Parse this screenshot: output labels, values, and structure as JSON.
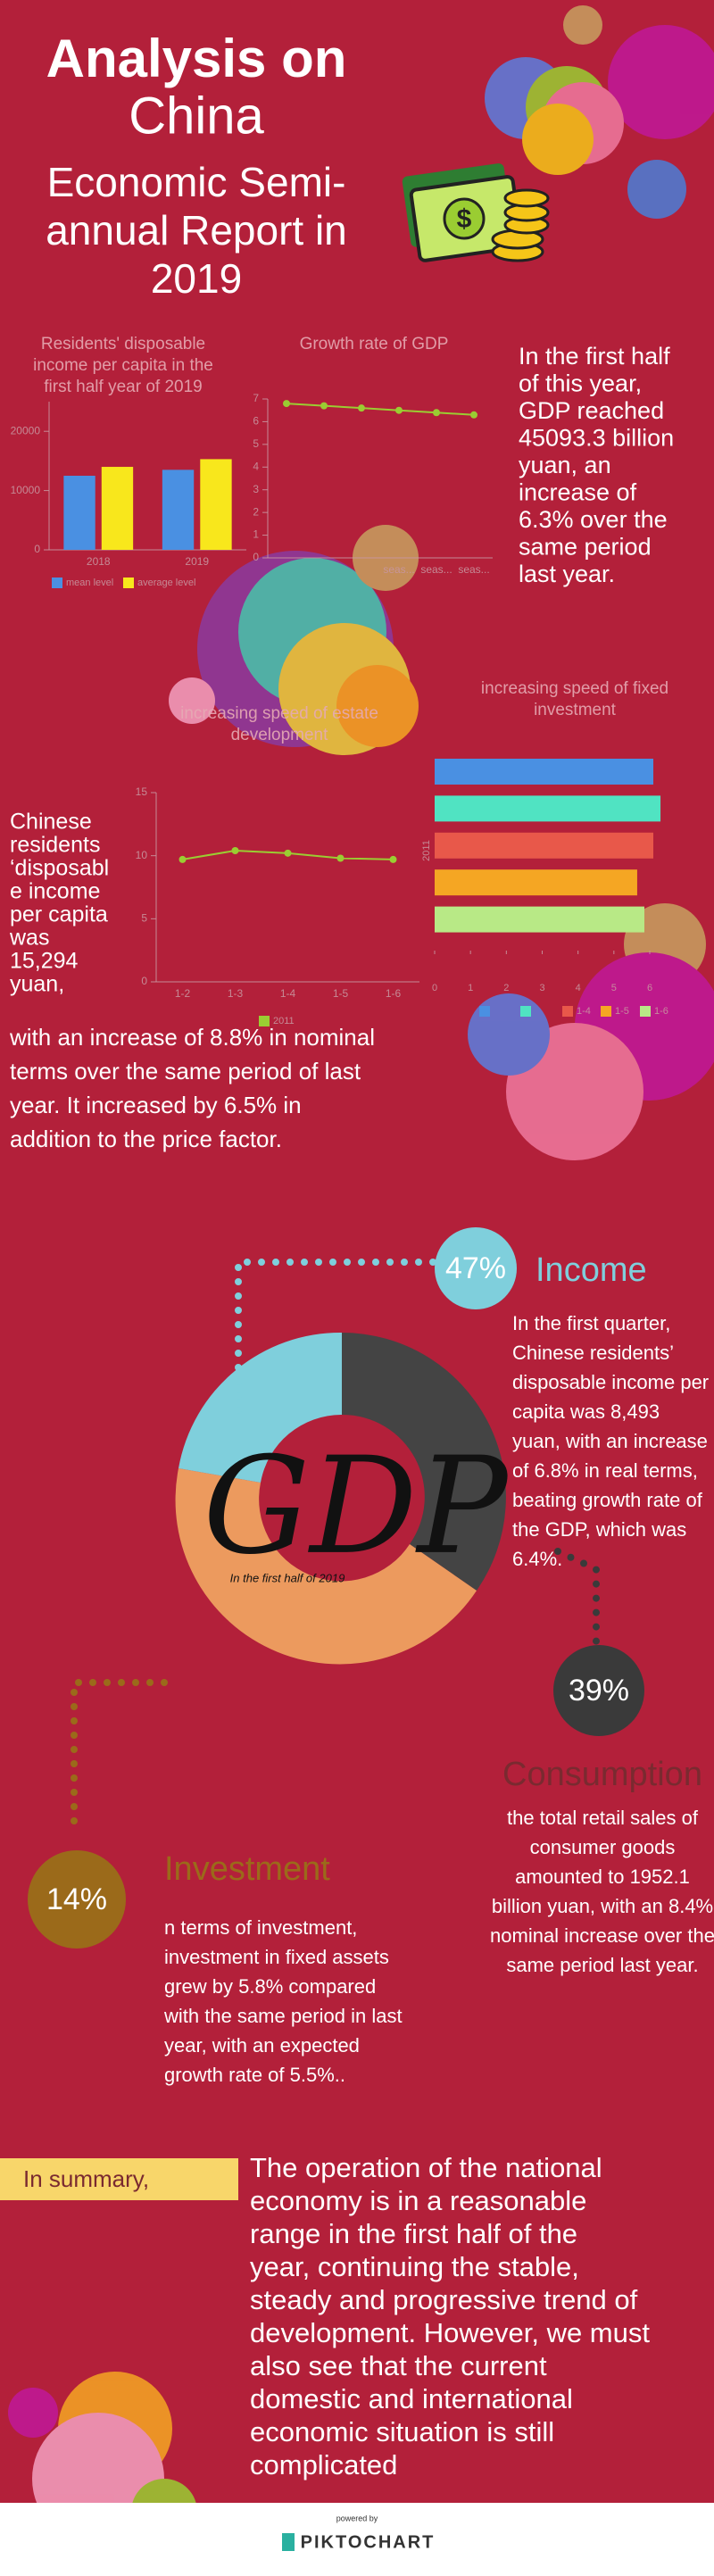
{
  "header": {
    "title": "Analysis on",
    "title2": "China",
    "subtitle": [
      "Economic Semi-",
      "annual Report in",
      "2019"
    ]
  },
  "chart_data": [
    {
      "type": "bar",
      "title": [
        "Residents' disposable",
        "income per capita in the",
        "first half year of 2019"
      ],
      "categories": [
        "2018",
        "2019"
      ],
      "series": [
        {
          "name": "mean level",
          "color": "#4a90e2",
          "values": [
            12500,
            13500
          ]
        },
        {
          "name": "average level",
          "color": "#f8e71c",
          "values": [
            14000,
            15300
          ]
        }
      ],
      "ylim": [
        0,
        25000
      ],
      "yticks": [
        0,
        10000,
        20000
      ]
    },
    {
      "type": "line",
      "title": [
        "Growth rate of GDP"
      ],
      "categories": [
        null,
        null,
        null,
        "seas...",
        "seas...",
        "seas..."
      ],
      "series": [
        {
          "color": "#9acd32",
          "values": [
            6.8,
            6.7,
            6.6,
            6.5,
            6.4,
            6.3
          ]
        }
      ],
      "ylim": [
        0,
        7
      ],
      "yticks": [
        0,
        1,
        2,
        3,
        4,
        5,
        6,
        7
      ]
    },
    {
      "type": "line",
      "title": [
        "increasing speed of estate",
        "development"
      ],
      "categories": [
        "1-2",
        "1-3",
        "1-4",
        "1-5",
        "1-6"
      ],
      "series": [
        {
          "name": "2011",
          "color": "#9acd32",
          "values": [
            9.7,
            10.4,
            10.2,
            9.8,
            9.7
          ]
        }
      ],
      "ylim": [
        0,
        15
      ],
      "yticks": [
        0,
        5,
        10,
        15
      ]
    },
    {
      "type": "hbar",
      "title": [
        "increasing speed of fixed",
        "investment"
      ],
      "categories": [
        "2011"
      ],
      "series": [
        {
          "color": "#4a90e2",
          "values": [
            6.1
          ]
        },
        {
          "color": "#50e3c2",
          "values": [
            6.3
          ]
        },
        {
          "name": "1-4",
          "color": "#e8584a",
          "values": [
            6.1
          ]
        },
        {
          "name": "1-5",
          "color": "#f5a623",
          "values": [
            5.65
          ]
        },
        {
          "name": "1-6",
          "color": "#b8e986",
          "values": [
            5.85
          ]
        }
      ],
      "xlim": [
        0,
        6
      ],
      "xticks": [
        0,
        1,
        2,
        3,
        4,
        5,
        6
      ]
    }
  ],
  "gdp_text": [
    "In the first half",
    "of this year,",
    "GDP reached",
    "45093.3 billion",
    "yuan, an",
    "increase of",
    "6.3% over the",
    "same period",
    "last year."
  ],
  "income_text": [
    "Chinese",
    "residents",
    "‘disposabl",
    "e income",
    "per capita",
    "was",
    "15,294",
    "yuan,"
  ],
  "increase_text": [
    "with an increase of 8.8% in nominal",
    "terms over the same period of last",
    "year. It increased by 6.5% in",
    "addition to the price factor."
  ],
  "donut": {
    "title": "GDP",
    "subtitle": "In the first half of 2019"
  },
  "income": {
    "percent": "47%",
    "label": "Income",
    "lines": [
      "In the first quarter,",
      "Chinese residents’",
      "disposable income per",
      "capita was 8,493",
      "yuan, with an increase",
      "of 6.8% in real terms,",
      "beating growth rate of",
      "the GDP, which was",
      "6.4%."
    ]
  },
  "consumption": {
    "percent": "39%",
    "label": "Consumption",
    "lines": [
      "the total retail sales of",
      "consumer goods",
      "amounted to 1952.1",
      "billion yuan, with an 8.4%",
      "nominal increase over the",
      "same period last year."
    ]
  },
  "investment": {
    "percent": "14%",
    "label": "Investment",
    "lines": [
      "n terms of investment,",
      "investment in fixed assets",
      "grew by 5.8% compared",
      "with the same period in last",
      "year, with an expected",
      "growth rate of 5.5%.."
    ]
  },
  "summary": {
    "label": "In summary,",
    "lines": [
      "The operation of the national",
      "economy is in a reasonable",
      "range in the first half of the",
      "year, continuing the stable,",
      "steady and progressive trend of",
      "development. However, we must",
      "also see that the current",
      "domestic and international",
      "economic situation is still",
      "complicated"
    ]
  },
  "footer": {
    "powered": "powered by",
    "brand": "PIKTOCHART"
  }
}
